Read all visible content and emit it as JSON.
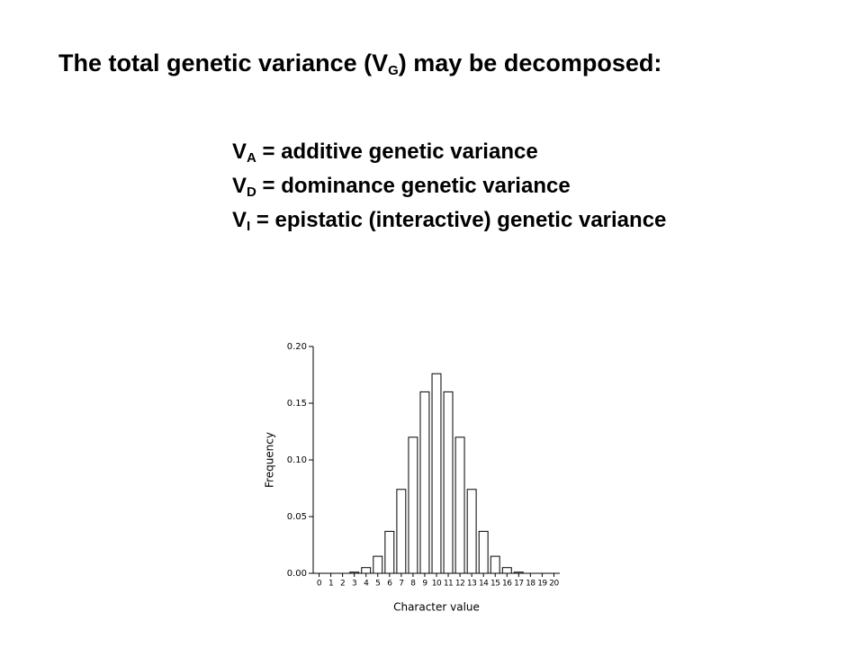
{
  "title": {
    "before": "The total genetic variance (V",
    "sub": "G",
    "after": ") may be decomposed:"
  },
  "items": [
    {
      "symbol": "V",
      "sub": "A",
      "text": " = additive genetic variance"
    },
    {
      "symbol": "V",
      "sub": "D",
      "text": " = dominance genetic variance"
    },
    {
      "symbol": "V",
      "sub": "I",
      "text": " = epistatic (interactive) genetic variance"
    }
  ],
  "chart_data": {
    "type": "bar",
    "x_label": "Character value",
    "y_label": "Frequency",
    "categories": [
      "0",
      "1",
      "2",
      "3",
      "4",
      "5",
      "6",
      "7",
      "8",
      "9",
      "10",
      "11",
      "12",
      "13",
      "14",
      "15",
      "16",
      "17",
      "18",
      "19",
      "20"
    ],
    "values": [
      0,
      0,
      0,
      0.001,
      0.005,
      0.015,
      0.037,
      0.074,
      0.12,
      0.16,
      0.176,
      0.16,
      0.12,
      0.074,
      0.037,
      0.015,
      0.005,
      0.001,
      0,
      0,
      0
    ],
    "color": "#ffffff",
    "ylim": [
      0,
      0.2
    ],
    "yticks": [
      {
        "value": 0,
        "label": "0.00"
      },
      {
        "value": 0.05,
        "label": "0.05"
      },
      {
        "value": 0.1,
        "label": "0.10"
      },
      {
        "value": 0.15,
        "label": "0.15"
      },
      {
        "value": 0.2,
        "label": "0.20"
      }
    ]
  }
}
